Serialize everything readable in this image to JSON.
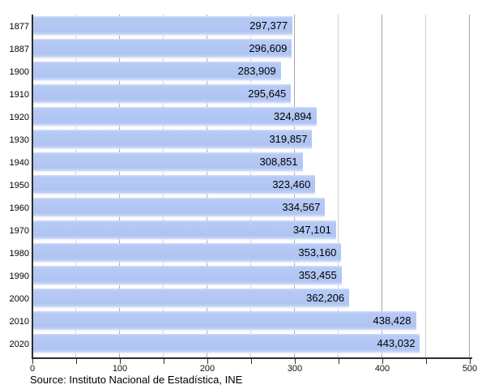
{
  "chart_data": {
    "type": "bar",
    "orientation": "horizontal",
    "title": "",
    "xlabel": "",
    "ylabel": "",
    "categories": [
      "1877",
      "1887",
      "1900",
      "1910",
      "1920",
      "1930",
      "1940",
      "1950",
      "1960",
      "1970",
      "1980",
      "1990",
      "2000",
      "2010",
      "2020"
    ],
    "values": [
      297377,
      296609,
      283909,
      295645,
      324894,
      319857,
      308851,
      323460,
      334567,
      347101,
      353160,
      353455,
      362206,
      438428,
      443032
    ],
    "value_labels": [
      "297,377",
      "296,609",
      "283,909",
      "295,645",
      "324,894",
      "319,857",
      "308,851",
      "323,460",
      "334,567",
      "347,101",
      "353,160",
      "353,455",
      "362,206",
      "438,428",
      "443,032"
    ],
    "xlim": [
      0,
      500
    ],
    "x_tick_step": 100,
    "x_minor_step": 50,
    "x_tick_labels": [
      "0",
      "100",
      "200",
      "300",
      "400",
      "500"
    ],
    "value_axis_divisor": 1000,
    "grid": "vertical",
    "legend": "none"
  },
  "source_note": "Source: Instituto Nacional de Estadística, INE",
  "colors": {
    "bar_fill": "#b1c6f3",
    "bar_highlight": "#d3def9",
    "grid_minor": "#cfcfcf",
    "grid_major": "#a6a6a6",
    "axis": "#2e2e2e",
    "text": "#000000",
    "background": "#ffffff"
  }
}
